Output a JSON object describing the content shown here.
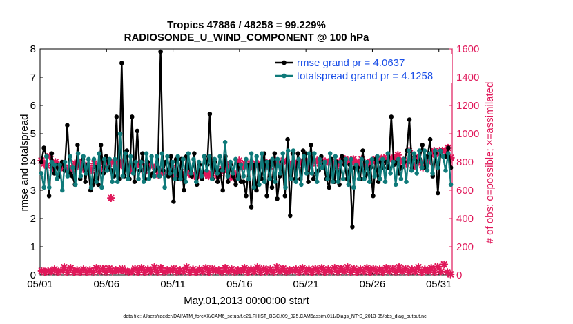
{
  "colors": {
    "rmse": "#000000",
    "spread": "#0f7a7a",
    "obs": "#e0185a",
    "legend_text": "#1a4fe8",
    "axis": "#000000"
  },
  "chart_data": {
    "type": "line",
    "title": "Tropics 47886 / 48258 = 99.229%",
    "subtitle": "RADIOSONDE_U_WIND_COMPONENT @ 100 hPa",
    "xlabel": "May.01,2013 00:00:00 start",
    "ylabel": "rmse and totalspread",
    "ylabel_right": "# of obs: o=possible; ×=assimilated",
    "x_range": [
      1,
      32
    ],
    "x_ticks": [
      1,
      6,
      11,
      16,
      21,
      26,
      31
    ],
    "x_tick_labels": [
      "05/01",
      "05/06",
      "05/11",
      "05/16",
      "05/21",
      "05/26",
      "05/31"
    ],
    "ylim": [
      0,
      8
    ],
    "y_ticks": [
      0,
      1,
      2,
      3,
      4,
      5,
      6,
      7,
      8
    ],
    "y_tick_labels": [
      "0",
      "1",
      "2",
      "3",
      "4",
      "5",
      "6",
      "7",
      "8"
    ],
    "ylim_right": [
      0,
      1600
    ],
    "y_ticks_right": [
      0,
      200,
      400,
      600,
      800,
      1000,
      1200,
      1400,
      1600
    ],
    "y_tick_labels_right": [
      "0",
      "200",
      "400",
      "600",
      "800",
      "1000",
      "1200",
      "1400",
      "1600"
    ],
    "legend": [
      {
        "name": "rmse grand pr = 4.0637"
      },
      {
        "name": "totalspread grand pr = 4.1258"
      }
    ],
    "series": [
      {
        "name": "rmse",
        "values": [
          4.0,
          4.5,
          4.2,
          2.8,
          4.3,
          3.6,
          3.9,
          3.5,
          4.0,
          3.7,
          5.3,
          3.6,
          3.5,
          3.2,
          4.6,
          3.4,
          4.1,
          3.3,
          3.9,
          3.0,
          3.2,
          3.8,
          3.2,
          4.6,
          3.6,
          4.2,
          3.8,
          3.7,
          3.5,
          5.6,
          3.4,
          7.5,
          3.5,
          4.4,
          3.4,
          5.6,
          3.3,
          5.1,
          3.7,
          4.3,
          3.4,
          4.0,
          3.5,
          3.6,
          3.7,
          3.8,
          7.9,
          3.7,
          4.0,
          3.5,
          4.2,
          2.6,
          4.1,
          3.4,
          4.1,
          3.0,
          4.2,
          3.8,
          3.5,
          4.3,
          3.2,
          3.9,
          3.4,
          4.2,
          3.9,
          5.7,
          3.4,
          4.0,
          3.3,
          3.7,
          3.0,
          4.2,
          3.3,
          3.9,
          3.5,
          3.2,
          3.9,
          3.3,
          3.3,
          2.8,
          3.9,
          2.4,
          3.9,
          3.0,
          3.9,
          3.4,
          4.3,
          2.8,
          4.0,
          3.1,
          4.3,
          2.7,
          3.5,
          4.0,
          2.8,
          4.8,
          2.1,
          4.3,
          3.4,
          4.3,
          3.4,
          4.4,
          4.3,
          3.3,
          4.6,
          3.4,
          3.6,
          3.7,
          4.2,
          3.8,
          3.4,
          3.1,
          4.1,
          3.3,
          4.0,
          3.2,
          4.2,
          3.9,
          3.4,
          3.9,
          1.7,
          3.8,
          3.8,
          3.4,
          4.4,
          3.5,
          3.6,
          3.8,
          2.8,
          4.1,
          3.3,
          4.0,
          3.8,
          4.0,
          3.8,
          5.6,
          3.9,
          4.0,
          3.6,
          3.8,
          4.0,
          4.4,
          5.5,
          3.8,
          4.2,
          4.0,
          4.1,
          4.6,
          3.8,
          4.2,
          4.8,
          3.5,
          4.3,
          2.9,
          4.4,
          4.2,
          4.2,
          4.5,
          3.8
        ]
      },
      {
        "name": "totalspread",
        "values": [
          3.6,
          3.1,
          4.2,
          3.1,
          4.0,
          3.9,
          3.4,
          3.9,
          3.0,
          4.0,
          3.5,
          4.2,
          3.8,
          3.2,
          4.3,
          3.5,
          4.2,
          3.6,
          4.1,
          3.1,
          4.1,
          3.3,
          4.3,
          3.1,
          4.1,
          3.7,
          4.1,
          3.3,
          4.1,
          3.3,
          5.0,
          3.5,
          4.3,
          3.4,
          4.2,
          3.6,
          4.0,
          3.4,
          4.0,
          3.3,
          4.3,
          3.4,
          4.2,
          3.5,
          4.2,
          3.5,
          4.3,
          3.1,
          4.2,
          3.6,
          4.0,
          3.4,
          4.2,
          3.4,
          4.1,
          3.3,
          4.3,
          3.6,
          4.1,
          3.3,
          4.0,
          3.5,
          4.2,
          3.7,
          4.2,
          3.4,
          4.1,
          3.6,
          4.2,
          3.7,
          4.7,
          3.5,
          4.0,
          3.6,
          4.1,
          3.4,
          3.9,
          3.5,
          4.1,
          3.4,
          4.3,
          3.1,
          4.2,
          3.2,
          4.3,
          3.3,
          4.0,
          3.4,
          4.1,
          3.3,
          4.1,
          3.6,
          4.3,
          3.1,
          4.4,
          3.4,
          4.4,
          3.3,
          4.1,
          3.2,
          4.2,
          3.6,
          4.3,
          3.6,
          4.3,
          3.3,
          4.1,
          3.8,
          4.0,
          3.4,
          4.3,
          3.3,
          4.2,
          3.3,
          4.0,
          3.4,
          4.1,
          3.2,
          4.1,
          3.1,
          3.9,
          3.4,
          4.1,
          3.4,
          4.0,
          3.3,
          4.1,
          3.5,
          4.2,
          3.4,
          4.1,
          3.3,
          4.3,
          3.6,
          4.0,
          3.2,
          4.1,
          3.4,
          4.1,
          3.3,
          4.4,
          3.7,
          4.3,
          3.6,
          4.4,
          3.8,
          4.4,
          3.7,
          4.3,
          3.6,
          4.4,
          3.8,
          4.4,
          4.2,
          3.7,
          4.3,
          3.2
        ]
      },
      {
        "name": "obs assimilated (upper)",
        "axis": "right",
        "values": [
          810,
          790,
          775,
          840,
          760,
          800,
          770,
          780,
          755,
          740,
          760,
          735,
          790,
          770,
          795,
          750,
          775,
          760,
          740,
          790,
          770,
          750,
          790,
          800,
          770,
          545,
          800,
          780,
          770,
          800,
          770,
          770,
          740,
          760,
          780,
          790,
          790,
          740,
          765,
          780,
          770,
          760,
          710,
          730,
          720,
          730,
          740,
          760,
          700,
          710,
          690,
          700,
          730,
          720,
          710,
          700,
          720,
          700,
          720,
          710,
          700,
          720,
          740,
          700,
          720,
          750,
          750,
          780,
          690,
          690,
          720,
          810,
          760,
          790,
          770,
          790,
          760,
          790,
          780,
          780,
          800,
          790,
          770,
          800,
          810,
          790,
          790,
          810,
          800,
          790,
          780,
          800,
          780,
          800,
          800,
          810,
          770,
          790,
          810,
          810,
          790,
          810,
          800,
          800,
          790,
          780,
          770,
          800,
          810,
          820,
          810,
          800,
          820,
          800,
          790,
          820,
          780,
          770,
          800,
          800,
          820,
          800,
          820,
          830,
          810,
          830,
          820,
          830,
          850,
          800,
          810,
          790,
          880,
          810,
          770,
          830,
          790,
          760,
          810,
          800,
          850,
          880,
          860,
          880,
          880,
          880,
          900,
          830
        ]
      },
      {
        "name": "obs assimilated (lower)",
        "axis": "right",
        "values": [
          30,
          20,
          30,
          25,
          40,
          20,
          30,
          55,
          20,
          50,
          20,
          35,
          20,
          40,
          20,
          35,
          20,
          50,
          25,
          45,
          20,
          45,
          25,
          35,
          30,
          45,
          30,
          20,
          25,
          45,
          20,
          50,
          20,
          40,
          25,
          55,
          20,
          50,
          20,
          35,
          30,
          45,
          20,
          35,
          25,
          55,
          20,
          40,
          20,
          40,
          25,
          50,
          20,
          45,
          30,
          35,
          20,
          50,
          25,
          40,
          20,
          35,
          30,
          50,
          20,
          40,
          25,
          55,
          20,
          45,
          25,
          40,
          20,
          55,
          25,
          45,
          20,
          35,
          30,
          40,
          20,
          50,
          25,
          40,
          20,
          45,
          25,
          50,
          20,
          40,
          25,
          50,
          20,
          45,
          25,
          55,
          20,
          45,
          20,
          40,
          25,
          50,
          20,
          45,
          25,
          40,
          20,
          50,
          25,
          45,
          20,
          55,
          25,
          45,
          20,
          40,
          25,
          55,
          20,
          40,
          30,
          50,
          20,
          60,
          25,
          75,
          20,
          5
        ]
      }
    ]
  },
  "footnote": "data file: /Users/raeder/DAI/ATM_forcXX/CAM6_setup/f.e21.FHIST_BGC.f09_025.CAM6assim.011/Diags_NTrS_2013-05/obs_diag_output.nc"
}
